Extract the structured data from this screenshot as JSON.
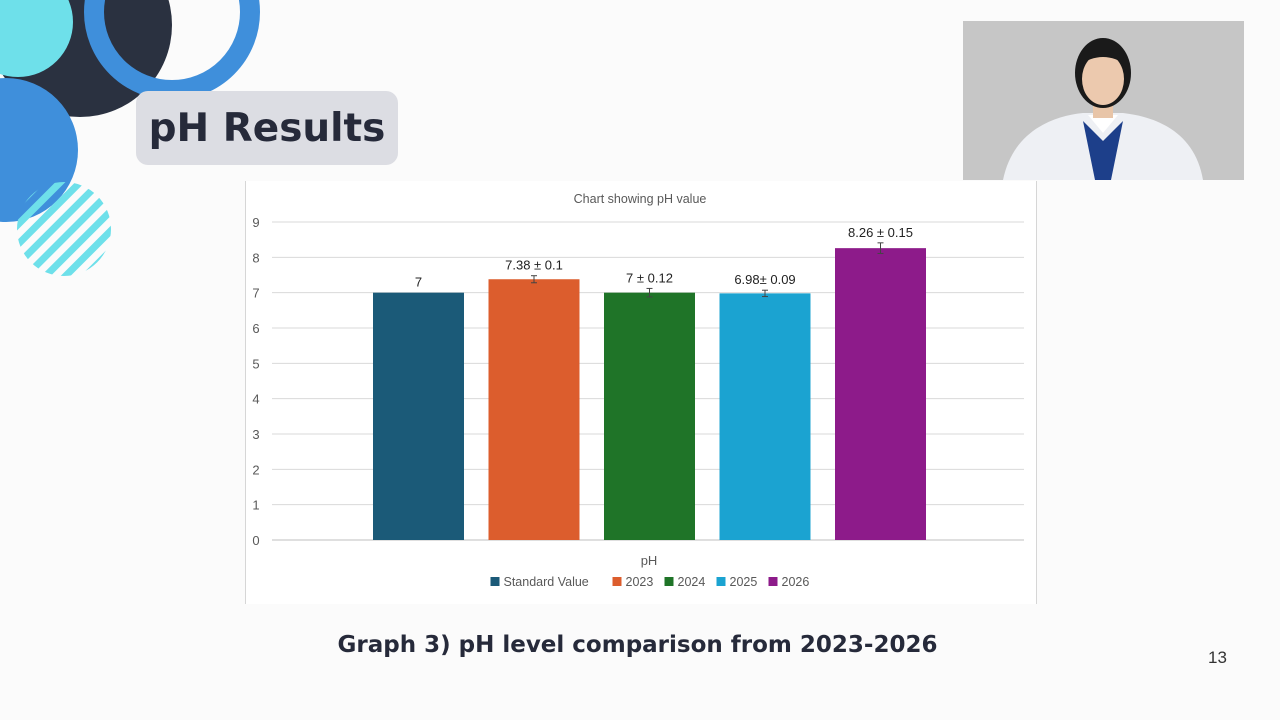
{
  "slide": {
    "title": "pH Results",
    "caption": "Graph 3) pH level comparison from 2023-2026",
    "page_number": "13"
  },
  "webcam": {
    "description_icon": "presenter-video-icon"
  },
  "colors": {
    "title_pill": "#dcdde3",
    "text_dark": "#262a3a",
    "deco_dark": "#2a3140",
    "deco_blue": "#3f8fdb",
    "deco_cyan": "#6ee0ea"
  },
  "chart_data": {
    "type": "bar",
    "title": "Chart showing pH  value",
    "xlabel": "pH",
    "ylabel": "",
    "ylim": [
      0,
      9
    ],
    "yticks": [
      "0",
      "1",
      "2",
      "3",
      "4",
      "5",
      "6",
      "7",
      "8",
      "9"
    ],
    "grid": true,
    "legend_position": "bottom",
    "series": [
      {
        "name": "Standard Value",
        "value": 7,
        "error": 0,
        "label": "7",
        "color": "#1b5a78"
      },
      {
        "name": "2023",
        "value": 7.38,
        "error": 0.1,
        "label": "7.38 ± 0.1",
        "color": "#dc5d2d"
      },
      {
        "name": "2024",
        "value": 7.0,
        "error": 0.12,
        "label": "7 ± 0.12",
        "color": "#1f7428"
      },
      {
        "name": "2025",
        "value": 6.98,
        "error": 0.09,
        "label": "6.98± 0.09",
        "color": "#1ba3d1"
      },
      {
        "name": "2026",
        "value": 8.26,
        "error": 0.15,
        "label": "8.26 ± 0.15",
        "color": "#8d1b8a"
      }
    ]
  }
}
